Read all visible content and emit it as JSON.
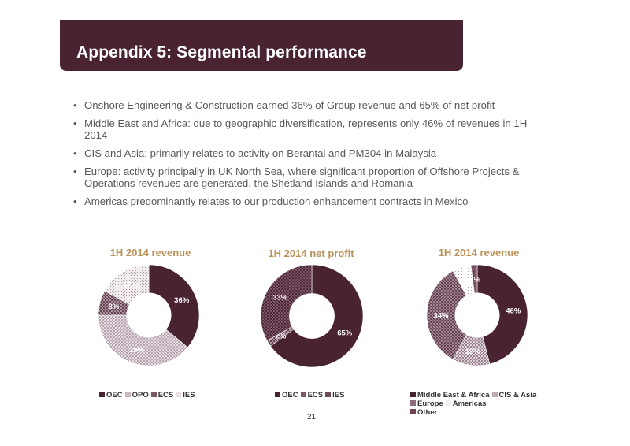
{
  "title": "Appendix 5: Segmental performance",
  "bullets": [
    "Onshore Engineering & Construction earned 36% of Group revenue and 65% of net profit",
    "Middle East and Africa: due to geographic diversification, represents only 46% of revenues in 1H 2014",
    "CIS and Asia: primarily relates to activity on Berantai and PM304 in Malaysia",
    "Europe: activity principally in UK North Sea, where significant proportion of Offshore Projects & Operations revenues are generated, the Shetland Islands and Romania",
    "Americas predominantly relates to our production enhancement contracts in Mexico"
  ],
  "page_number": "21",
  "colors": {
    "accent": "#4a2333",
    "chart_title": "#b8925a",
    "text": "#595959"
  },
  "chart_data": [
    {
      "type": "pie",
      "title": "1H 2014 revenue",
      "series": [
        {
          "values": [
            36,
            39,
            8,
            17
          ]
        }
      ],
      "categories": [
        "OEC",
        "OPO",
        "ECS",
        "IES"
      ],
      "data_labels": [
        "36%",
        "39%",
        "8%",
        "17%"
      ],
      "legend_position": "bottom"
    },
    {
      "type": "pie",
      "title": "1H 2014 net profit",
      "series": [
        {
          "values": [
            65,
            2,
            33
          ]
        }
      ],
      "categories": [
        "OEC",
        "ECS",
        "IES"
      ],
      "data_labels": [
        "65%",
        "2%",
        "33%"
      ],
      "legend_position": "bottom"
    },
    {
      "type": "pie",
      "title": "1H 2014 revenue",
      "series": [
        {
          "values": [
            46,
            12,
            34,
            6,
            2
          ]
        }
      ],
      "categories": [
        "Middle East & Africa",
        "CIS & Asia",
        "Europe",
        "Americas",
        "Other"
      ],
      "data_labels": [
        "46%",
        "12%",
        "34%",
        "6%",
        "2%"
      ],
      "legend_position": "bottom"
    }
  ]
}
